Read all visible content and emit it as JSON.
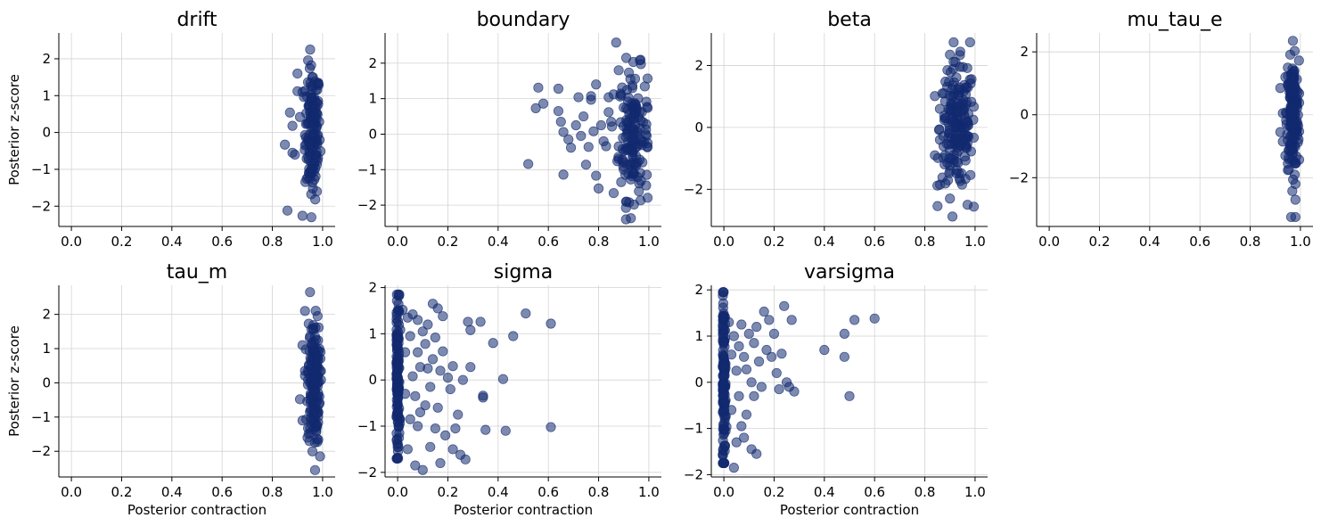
{
  "figure": {
    "point_color": "#132a70",
    "point_opacity": 0.55,
    "grid": true,
    "ylabel": "Posterior z-score",
    "xlabel": "Posterior contraction"
  },
  "chart_data": [
    {
      "type": "scatter",
      "title": "drift",
      "xlim": [
        -0.05,
        1.05
      ],
      "ylim": [
        -2.55,
        2.7
      ],
      "xticks": [
        "0.0",
        "0.2",
        "0.4",
        "0.6",
        "0.8",
        "1.0"
      ],
      "yticks": [
        "2",
        "1",
        "0",
        "−1",
        "−2"
      ],
      "ytick_values": [
        2,
        1,
        0,
        -1,
        -2
      ],
      "show_ylabel": true,
      "show_xlabel": false,
      "cluster": {
        "center": 0.96,
        "spread": 0.015,
        "count": 150,
        "ymin": -2.3,
        "ymax": 2.45,
        "sd": 0.9
      },
      "points": [
        [
          0.85,
          -0.33
        ],
        [
          0.86,
          -2.12
        ],
        [
          0.87,
          0.54
        ],
        [
          0.88,
          0.18
        ],
        [
          0.88,
          -0.55
        ],
        [
          0.89,
          -0.6
        ],
        [
          0.9,
          1.6
        ],
        [
          0.9,
          1.12
        ],
        [
          0.91,
          0.42
        ],
        [
          0.92,
          -2.26
        ],
        [
          0.93,
          -0.35
        ],
        [
          0.92,
          1.1
        ]
      ]
    },
    {
      "type": "scatter",
      "title": "boundary",
      "xlim": [
        -0.05,
        1.05
      ],
      "ylim": [
        -2.6,
        2.85
      ],
      "xticks": [
        "0.0",
        "0.2",
        "0.4",
        "0.6",
        "0.8",
        "1.0"
      ],
      "yticks": [
        "2",
        "1",
        "0",
        "−1",
        "−2"
      ],
      "ytick_values": [
        2,
        1,
        0,
        -1,
        -2
      ],
      "show_ylabel": false,
      "show_xlabel": false,
      "cluster": {
        "center": 0.94,
        "spread": 0.03,
        "count": 150,
        "ymin": -2.4,
        "ymax": 2.2,
        "sd": 0.9
      },
      "points": [
        [
          0.52,
          -0.84
        ],
        [
          0.55,
          0.73
        ],
        [
          0.56,
          1.31
        ],
        [
          0.58,
          0.86
        ],
        [
          0.64,
          1.28
        ],
        [
          0.64,
          0.65
        ],
        [
          0.65,
          0.35
        ],
        [
          0.66,
          0.06
        ],
        [
          0.66,
          -1.14
        ],
        [
          0.68,
          -0.15
        ],
        [
          0.69,
          -0.38
        ],
        [
          0.71,
          0.25
        ],
        [
          0.72,
          1.04
        ],
        [
          0.73,
          -0.05
        ],
        [
          0.74,
          0.5
        ],
        [
          0.75,
          -0.86
        ],
        [
          0.76,
          -0.36
        ],
        [
          0.77,
          1.07
        ],
        [
          0.77,
          0.97
        ],
        [
          0.78,
          0.08
        ],
        [
          0.79,
          1.4
        ],
        [
          0.79,
          -1.17
        ],
        [
          0.8,
          -1.53
        ],
        [
          0.81,
          0.25
        ],
        [
          0.82,
          -0.2
        ],
        [
          0.83,
          -0.34
        ],
        [
          0.84,
          0.62
        ],
        [
          0.85,
          0.35
        ],
        [
          0.86,
          1.12
        ],
        [
          0.86,
          -1.66
        ],
        [
          0.87,
          2.58
        ],
        [
          0.88,
          1.8
        ],
        [
          0.88,
          -0.7
        ],
        [
          0.89,
          -1.35
        ],
        [
          0.89,
          1.1
        ],
        [
          0.9,
          0.75
        ],
        [
          0.9,
          -1.0
        ],
        [
          0.91,
          2.15
        ],
        [
          0.91,
          -0.45
        ]
      ]
    },
    {
      "type": "scatter",
      "title": "beta",
      "xlim": [
        -0.05,
        1.05
      ],
      "ylim": [
        -3.2,
        3.05
      ],
      "xticks": [
        "0.0",
        "0.2",
        "0.4",
        "0.6",
        "0.8",
        "1.0"
      ],
      "yticks": [
        "2",
        "0",
        "−2"
      ],
      "ytick_values": [
        2,
        0,
        -2
      ],
      "show_ylabel": false,
      "show_xlabel": false,
      "cluster": {
        "center": 0.93,
        "spread": 0.035,
        "count": 180,
        "ymin": -2.9,
        "ymax": 2.75,
        "sd": 1.0
      },
      "points": [
        [
          0.85,
          -1.88
        ],
        [
          0.86,
          -0.4
        ],
        [
          0.86,
          0.6
        ],
        [
          0.87,
          -1.62
        ],
        [
          0.87,
          1.1
        ],
        [
          0.88,
          0.3
        ],
        [
          0.88,
          -0.9
        ],
        [
          0.89,
          1.85
        ],
        [
          0.89,
          -1.15
        ],
        [
          0.9,
          2.35
        ],
        [
          0.9,
          -2.3
        ],
        [
          0.91,
          -2.88
        ],
        [
          0.98,
          2.75
        ],
        [
          0.97,
          -2.5
        ]
      ]
    },
    {
      "type": "scatter",
      "title": "mu_tau_e",
      "xlim": [
        -0.05,
        1.05
      ],
      "ylim": [
        -3.55,
        2.6
      ],
      "xticks": [
        "0.0",
        "0.2",
        "0.4",
        "0.6",
        "0.8",
        "1.0"
      ],
      "yticks": [
        "2",
        "0",
        "−2"
      ],
      "ytick_values": [
        2,
        0,
        -2
      ],
      "show_ylabel": false,
      "show_xlabel": false,
      "cluster": {
        "center": 0.97,
        "spread": 0.012,
        "count": 180,
        "ymin": -3.25,
        "ymax": 2.35,
        "sd": 0.85
      },
      "points": [
        [
          0.92,
          0.85
        ],
        [
          0.92,
          -0.55
        ],
        [
          0.93,
          -0.85
        ],
        [
          0.93,
          0.05
        ],
        [
          0.94,
          1.2
        ],
        [
          0.94,
          -1.3
        ],
        [
          0.95,
          -1.55
        ],
        [
          0.95,
          1.5
        ],
        [
          0.97,
          2.35
        ],
        [
          0.98,
          -3.25
        ],
        [
          0.98,
          -2.7
        ],
        [
          0.98,
          -2.2
        ]
      ]
    },
    {
      "type": "scatter",
      "title": "tau_m",
      "xlim": [
        -0.05,
        1.05
      ],
      "ylim": [
        -2.75,
        2.85
      ],
      "xticks": [
        "0.0",
        "0.2",
        "0.4",
        "0.6",
        "0.8",
        "1.0"
      ],
      "yticks": [
        "2",
        "1",
        "0",
        "−1",
        "−2"
      ],
      "ytick_values": [
        2,
        1,
        0,
        -1,
        -2
      ],
      "show_ylabel": true,
      "show_xlabel": true,
      "cluster": {
        "center": 0.965,
        "spread": 0.012,
        "count": 170,
        "ymin": -2.55,
        "ymax": 2.65,
        "sd": 0.9
      },
      "points": [
        [
          0.91,
          -0.48
        ],
        [
          0.92,
          1.1
        ],
        [
          0.92,
          -1.1
        ],
        [
          0.93,
          2.1
        ],
        [
          0.93,
          0.35
        ],
        [
          0.94,
          -1.6
        ],
        [
          0.95,
          2.65
        ],
        [
          0.97,
          -2.55
        ],
        [
          0.98,
          1.95
        ],
        [
          0.99,
          -2.15
        ]
      ]
    },
    {
      "type": "scatter",
      "title": "sigma",
      "xlim": [
        -0.05,
        1.05
      ],
      "ylim": [
        -2.1,
        2.05
      ],
      "xticks": [
        "0.0",
        "0.2",
        "0.4",
        "0.6",
        "0.8",
        "1.0"
      ],
      "yticks": [
        "2",
        "1",
        "0",
        "−1",
        "−2"
      ],
      "ytick_values": [
        2,
        1,
        0,
        -1,
        -2
      ],
      "show_ylabel": false,
      "show_xlabel": true,
      "cluster": {
        "center": 0.0,
        "spread": 0.004,
        "count": 150,
        "ymin": -1.7,
        "ymax": 1.85,
        "sd": 0.9
      },
      "points": [
        [
          0.02,
          1.52
        ],
        [
          0.03,
          0.6
        ],
        [
          0.03,
          -0.3
        ],
        [
          0.04,
          1.35
        ],
        [
          0.04,
          -1.5
        ],
        [
          0.05,
          0.95
        ],
        [
          0.05,
          -0.85
        ],
        [
          0.06,
          1.42
        ],
        [
          0.06,
          0.08
        ],
        [
          0.07,
          -1.85
        ],
        [
          0.07,
          -0.35
        ],
        [
          0.08,
          1.3
        ],
        [
          0.08,
          0.6
        ],
        [
          0.08,
          -1.0
        ],
        [
          0.09,
          0.28
        ],
        [
          0.09,
          -0.7
        ],
        [
          0.1,
          1.05
        ],
        [
          0.1,
          -1.95
        ],
        [
          0.11,
          0.78
        ],
        [
          0.11,
          -0.55
        ],
        [
          0.12,
          1.2
        ],
        [
          0.12,
          0.25
        ],
        [
          0.13,
          -0.15
        ],
        [
          0.13,
          -1.45
        ],
        [
          0.14,
          1.65
        ],
        [
          0.14,
          0.45
        ],
        [
          0.15,
          -1.05
        ],
        [
          0.15,
          0.92
        ],
        [
          0.16,
          1.55
        ],
        [
          0.16,
          -0.6
        ],
        [
          0.17,
          0.2
        ],
        [
          0.17,
          -1.8
        ],
        [
          0.18,
          1.38
        ],
        [
          0.18,
          0.62
        ],
        [
          0.19,
          -1.2
        ],
        [
          0.2,
          0.05
        ],
        [
          0.21,
          -0.2
        ],
        [
          0.22,
          0.3
        ],
        [
          0.22,
          -1.5
        ],
        [
          0.23,
          -1.05
        ],
        [
          0.24,
          -0.75
        ],
        [
          0.25,
          -1.62
        ],
        [
          0.26,
          0.0
        ],
        [
          0.27,
          -1.72
        ],
        [
          0.28,
          1.26
        ],
        [
          0.29,
          1.08
        ],
        [
          0.29,
          0.28
        ],
        [
          0.33,
          1.26
        ],
        [
          0.34,
          -0.38
        ],
        [
          0.35,
          -1.08
        ],
        [
          0.38,
          0.8
        ],
        [
          0.42,
          0.02
        ],
        [
          0.43,
          -1.1
        ],
        [
          0.46,
          0.95
        ],
        [
          0.51,
          1.44
        ],
        [
          0.61,
          1.22
        ],
        [
          0.61,
          -1.02
        ],
        [
          0.34,
          -0.34
        ]
      ]
    },
    {
      "type": "scatter",
      "title": "varsigma",
      "xlim": [
        -0.05,
        1.05
      ],
      "ylim": [
        -2.05,
        2.1
      ],
      "xticks": [
        "0.0",
        "0.2",
        "0.4",
        "0.6",
        "0.8",
        "1.0"
      ],
      "yticks": [
        "2",
        "1",
        "0",
        "−1",
        "−2"
      ],
      "ytick_values": [
        2,
        1,
        0,
        -1,
        -2
      ],
      "show_ylabel": false,
      "show_xlabel": true,
      "cluster": {
        "center": 0.0,
        "spread": 0.004,
        "count": 150,
        "ymin": -1.75,
        "ymax": 1.95,
        "sd": 0.9
      },
      "points": [
        [
          0.02,
          1.3
        ],
        [
          0.03,
          0.6
        ],
        [
          0.03,
          -0.6
        ],
        [
          0.04,
          1.0
        ],
        [
          0.04,
          -1.85
        ],
        [
          0.05,
          0.25
        ],
        [
          0.05,
          -1.3
        ],
        [
          0.06,
          0.78
        ],
        [
          0.06,
          -0.3
        ],
        [
          0.07,
          1.25
        ],
        [
          0.07,
          -0.95
        ],
        [
          0.08,
          0.55
        ],
        [
          0.08,
          -1.2
        ],
        [
          0.09,
          0.28
        ],
        [
          0.09,
          -0.7
        ],
        [
          0.1,
          1.05
        ],
        [
          0.11,
          0.0
        ],
        [
          0.11,
          -1.45
        ],
        [
          0.12,
          0.85
        ],
        [
          0.12,
          -0.3
        ],
        [
          0.13,
          1.2
        ],
        [
          0.13,
          -1.55
        ],
        [
          0.14,
          0.45
        ],
        [
          0.15,
          -0.1
        ],
        [
          0.16,
          1.53
        ],
        [
          0.17,
          0.7
        ],
        [
          0.18,
          1.35
        ],
        [
          0.19,
          0.55
        ],
        [
          0.2,
          1.05
        ],
        [
          0.21,
          0.2
        ],
        [
          0.22,
          -0.15
        ],
        [
          0.23,
          0.62
        ],
        [
          0.24,
          1.65
        ],
        [
          0.25,
          0.0
        ],
        [
          0.26,
          -0.1
        ],
        [
          0.27,
          1.35
        ],
        [
          0.28,
          -0.2
        ],
        [
          0.4,
          0.7
        ],
        [
          0.48,
          1.05
        ],
        [
          0.48,
          0.55
        ],
        [
          0.5,
          -0.3
        ],
        [
          0.52,
          1.35
        ],
        [
          0.6,
          1.38
        ]
      ]
    }
  ]
}
